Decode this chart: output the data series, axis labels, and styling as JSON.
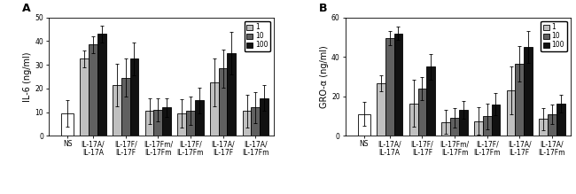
{
  "panel_A": {
    "title": "A",
    "ylabel": "IL-6 (ng/ml)",
    "ylim": [
      0,
      50
    ],
    "yticks": [
      0,
      10,
      20,
      30,
      40,
      50
    ],
    "ns_value": 9.5,
    "ns_err": 5.5,
    "groups": [
      {
        "label_line1": "IL-17A/",
        "label_line2": "IL-17A",
        "values": [
          32.5,
          38.5,
          43.0
        ],
        "errors": [
          3.5,
          3.5,
          3.5
        ]
      },
      {
        "label_line1": "IL-17F/",
        "label_line2": "IL-17F",
        "values": [
          21.5,
          24.5,
          32.5
        ],
        "errors": [
          9.0,
          8.0,
          7.0
        ]
      },
      {
        "label_line1": "IL-17Fm/",
        "label_line2": "IL-17Fm",
        "values": [
          10.5,
          11.0,
          12.0
        ],
        "errors": [
          5.5,
          5.0,
          4.0
        ]
      },
      {
        "label_line1": "IL-17F/",
        "label_line2": "IL-17Fm",
        "values": [
          9.5,
          10.5,
          15.0
        ],
        "errors": [
          6.0,
          6.0,
          5.5
        ]
      },
      {
        "label_line1": "IL-17A/",
        "label_line2": "IL-17F",
        "values": [
          22.5,
          28.5,
          35.0
        ],
        "errors": [
          10.0,
          8.0,
          9.0
        ]
      },
      {
        "label_line1": "IL-17A/",
        "label_line2": "IL-17Fm",
        "values": [
          10.5,
          12.0,
          16.0
        ],
        "errors": [
          7.0,
          6.5,
          5.5
        ]
      }
    ]
  },
  "panel_B": {
    "title": "B",
    "ylabel": "GRO-α (ng/ml)",
    "ylim": [
      0,
      60
    ],
    "yticks": [
      0,
      20,
      40,
      60
    ],
    "ns_value": 11.0,
    "ns_err": 6.0,
    "groups": [
      {
        "label_line1": "IL-17A/",
        "label_line2": "IL-17A",
        "values": [
          26.5,
          49.5,
          52.0
        ],
        "errors": [
          4.0,
          3.5,
          3.5
        ]
      },
      {
        "label_line1": "IL-17F/",
        "label_line2": "IL-17F",
        "values": [
          16.5,
          24.0,
          35.0
        ],
        "errors": [
          12.0,
          6.0,
          6.5
        ]
      },
      {
        "label_line1": "IL-17Fm/",
        "label_line2": "IL-17Fm",
        "values": [
          7.0,
          9.0,
          13.0
        ],
        "errors": [
          6.0,
          5.0,
          4.5
        ]
      },
      {
        "label_line1": "IL-17F/",
        "label_line2": "IL-17Fm",
        "values": [
          7.5,
          10.0,
          16.0
        ],
        "errors": [
          7.0,
          6.5,
          5.5
        ]
      },
      {
        "label_line1": "IL-17A/",
        "label_line2": "IL-17F",
        "values": [
          23.0,
          36.5,
          45.0
        ],
        "errors": [
          12.0,
          9.0,
          8.0
        ]
      },
      {
        "label_line1": "IL-17A/",
        "label_line2": "IL-17Fm",
        "values": [
          8.5,
          11.0,
          16.5
        ],
        "errors": [
          5.5,
          5.0,
          4.5
        ]
      }
    ]
  },
  "bar_colors": [
    "#c0c0c0",
    "#606060",
    "#111111"
  ],
  "ns_bar_color": "#ffffff",
  "legend_labels": [
    "1",
    "10",
    "100"
  ],
  "bar_width": 0.13,
  "capsize": 1.5,
  "linewidth": 0.6,
  "tick_fontsize": 5.5,
  "label_fontsize": 7,
  "legend_fontsize": 5.5,
  "title_fontsize": 9
}
